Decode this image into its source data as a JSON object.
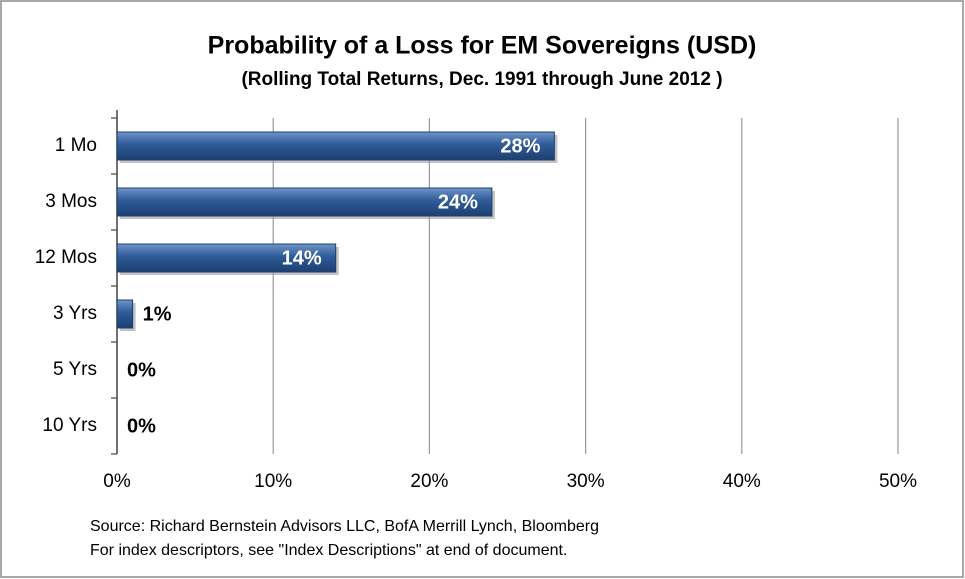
{
  "chart_data": {
    "type": "bar",
    "orientation": "horizontal",
    "title": "Probability of a Loss for EM Sovereigns (USD)",
    "subtitle": "(Rolling Total Returns, Dec. 1991 through June 2012 )",
    "categories": [
      "1 Mo",
      "3 Mos",
      "12 Mos",
      "3 Yrs",
      "5 Yrs",
      "10 Yrs"
    ],
    "values": [
      28,
      24,
      14,
      1,
      0,
      0
    ],
    "value_labels": [
      "28%",
      "24%",
      "14%",
      "1%",
      "0%",
      "0%"
    ],
    "color": "#2a5590",
    "xlim": [
      0,
      50
    ],
    "xticks": [
      {
        "value": 0,
        "label": "0%"
      },
      {
        "value": 10,
        "label": "10%"
      },
      {
        "value": 20,
        "label": "20%"
      },
      {
        "value": 30,
        "label": "30%"
      },
      {
        "value": 40,
        "label": "40%"
      },
      {
        "value": 50,
        "label": "50%"
      }
    ],
    "grid": true,
    "notes": [
      "Source: Richard Bernstein Advisors LLC, BofA Merrill Lynch, Bloomberg",
      "For index descriptors, see \"Index Descriptions\" at end of document."
    ]
  }
}
